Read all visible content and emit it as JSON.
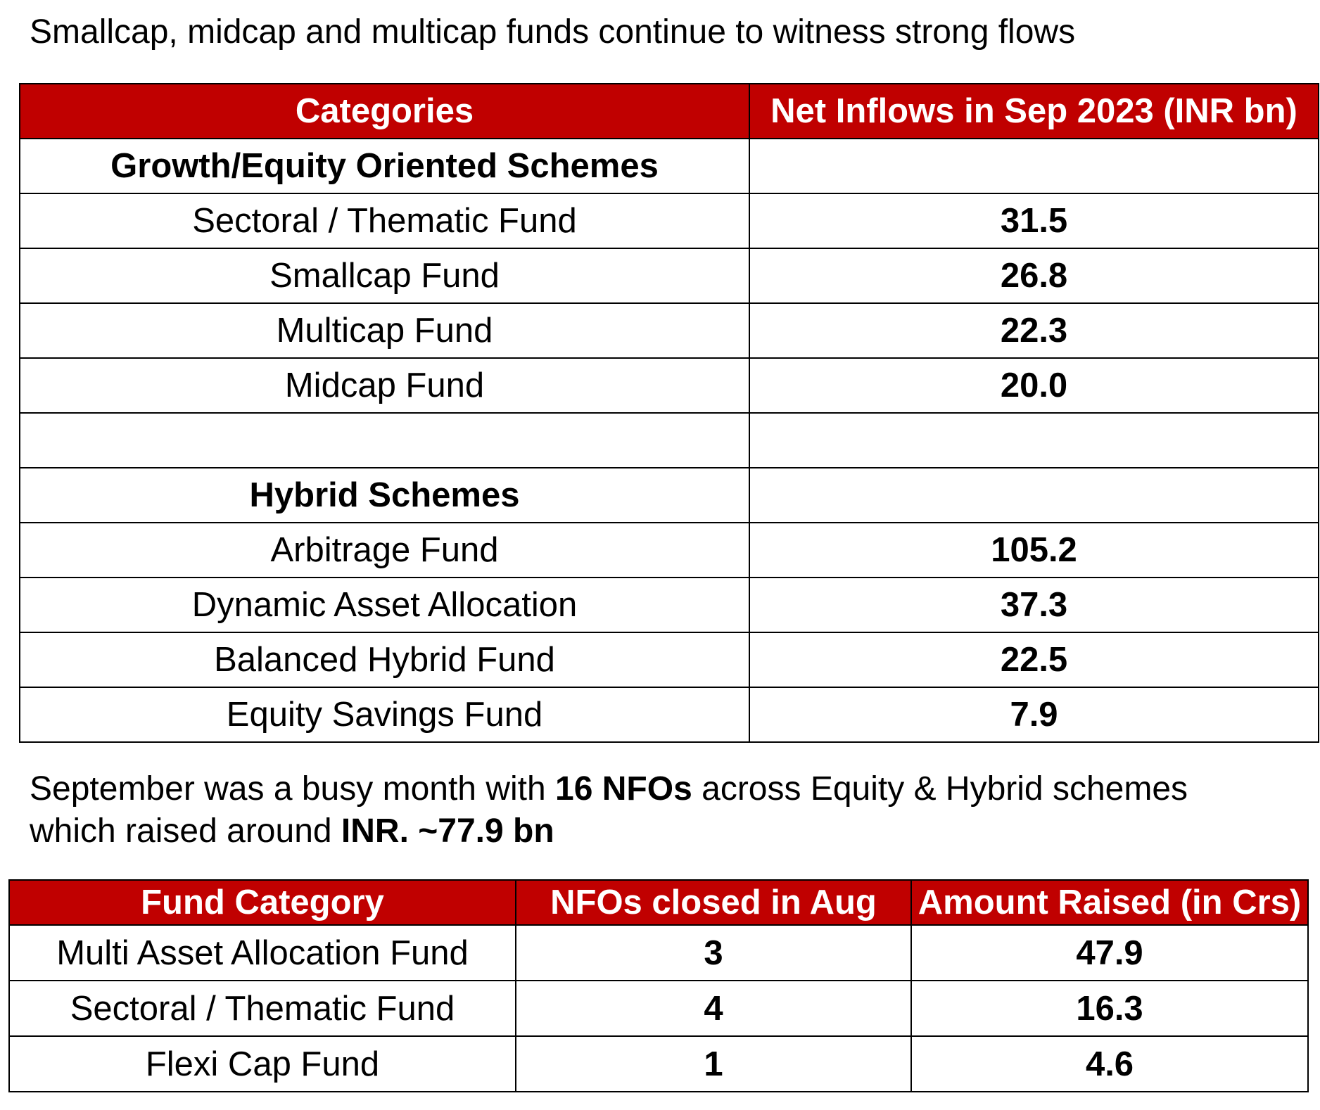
{
  "heading": "Smallcap, midcap and multicap funds continue to witness strong flows",
  "inflows_table": {
    "headers": [
      "Categories",
      "Net Inflows in Sep 2023 (INR bn)"
    ],
    "section_equity": "Growth/Equity Oriented Schemes",
    "equity_rows": [
      {
        "category": "Sectoral / Thematic Fund",
        "value": "31.5"
      },
      {
        "category": "Smallcap Fund",
        "value": "26.8"
      },
      {
        "category": "Multicap Fund",
        "value": "22.3"
      },
      {
        "category": "Midcap Fund",
        "value": "20.0"
      }
    ],
    "section_hybrid": "Hybrid Schemes",
    "hybrid_rows": [
      {
        "category": "Arbitrage Fund",
        "value": "105.2"
      },
      {
        "category": "Dynamic Asset Allocation",
        "value": "37.3"
      },
      {
        "category": "Balanced Hybrid Fund",
        "value": "22.5"
      },
      {
        "category": "Equity Savings Fund",
        "value": "7.9"
      }
    ]
  },
  "paragraph": {
    "part1": "September was a busy month with ",
    "bold1": "16 NFOs",
    "part2": " across Equity & Hybrid schemes",
    "part3": "which raised around ",
    "bold2": "INR. ~77.9 bn"
  },
  "nfo_table": {
    "headers": [
      "Fund Category",
      "NFOs closed in Aug",
      "Amount Raised (in Crs)"
    ],
    "rows": [
      {
        "category": "Multi Asset Allocation Fund",
        "nfos": "3",
        "amount": "47.9"
      },
      {
        "category": "Sectoral / Thematic Fund",
        "nfos": "4",
        "amount": "16.3"
      },
      {
        "category": "Flexi Cap Fund",
        "nfos": "1",
        "amount": "4.6"
      }
    ]
  },
  "colors": {
    "header_background": "#c00000",
    "header_text": "#ffffff",
    "border": "#000000"
  }
}
